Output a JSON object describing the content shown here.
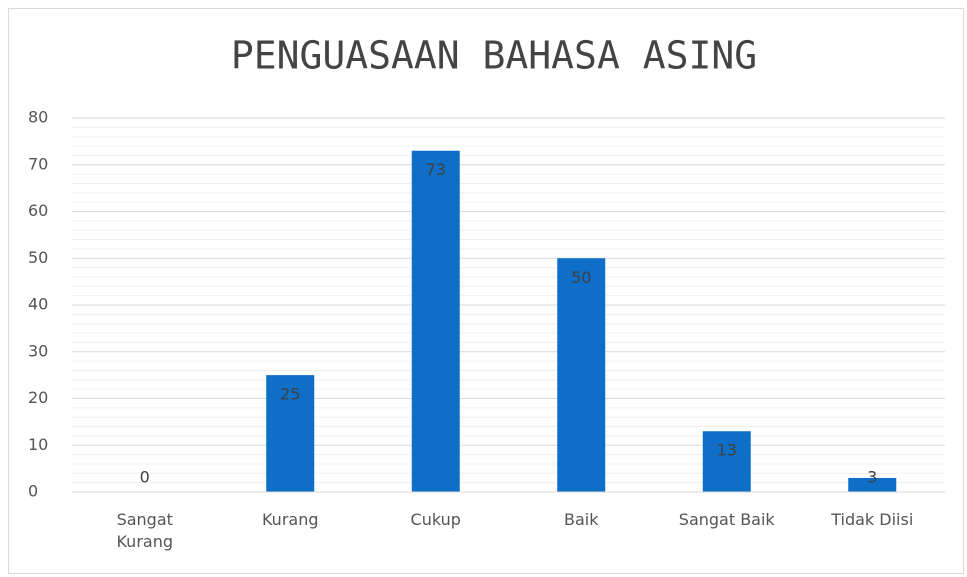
{
  "chart_data": {
    "type": "bar",
    "title": "PENGUASAAN BAHASA ASING",
    "categories": [
      "Sangat Kurang",
      "Kurang",
      "Cukup",
      "Baik",
      "Sangat Baik",
      "Tidak Diisi"
    ],
    "values": [
      0,
      25,
      73,
      50,
      13,
      3
    ],
    "color": "#0e6ec8",
    "ylim": [
      0,
      80
    ],
    "yticks": [
      0,
      10,
      20,
      30,
      40,
      50,
      60,
      70,
      80
    ],
    "yticks_minor": [
      2,
      4,
      6,
      8,
      12,
      14,
      16,
      18,
      22,
      24,
      26,
      28,
      32,
      34,
      36,
      38,
      42,
      44,
      46,
      48,
      52,
      54,
      56,
      58,
      62,
      64,
      66,
      68,
      72,
      74,
      76,
      78
    ],
    "grid": true,
    "data_labels": true
  }
}
